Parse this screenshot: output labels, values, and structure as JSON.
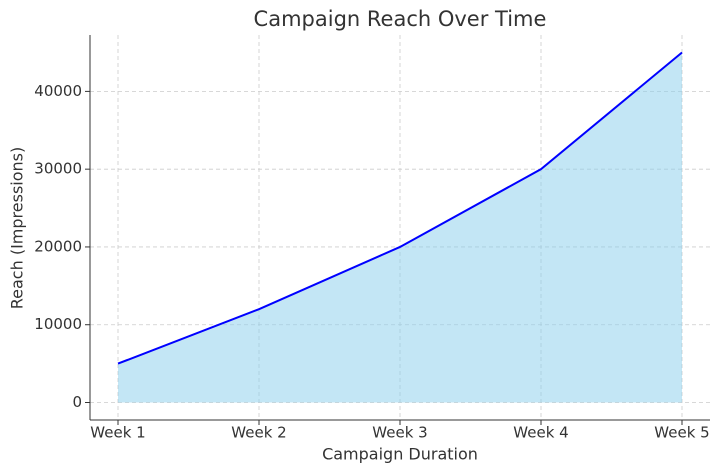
{
  "chart_data": {
    "type": "area",
    "title": "Campaign Reach Over Time",
    "x_label": "Campaign Duration",
    "y_label": "Reach (Impressions)",
    "categories": [
      "Week 1",
      "Week 2",
      "Week 3",
      "Week 4",
      "Week 5"
    ],
    "values": [
      5000,
      12000,
      20000,
      30000,
      45000
    ],
    "color": "#0000ff",
    "fill_color": "#87ceeb",
    "ylim": [
      -2250,
      47250
    ],
    "yticks": [
      0,
      10000,
      20000,
      30000,
      40000
    ],
    "grid": true
  }
}
